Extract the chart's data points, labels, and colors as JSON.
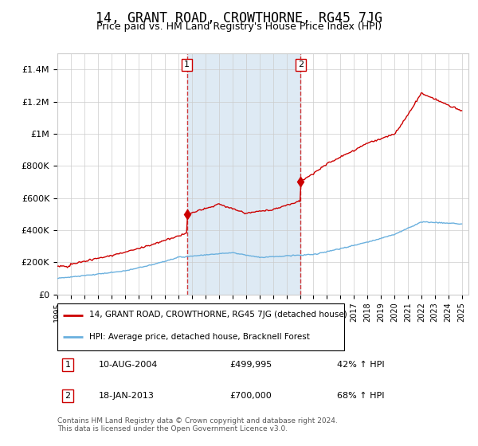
{
  "title": "14, GRANT ROAD, CROWTHORNE, RG45 7JG",
  "subtitle": "Price paid vs. HM Land Registry's House Price Index (HPI)",
  "ylim": [
    0,
    1500000
  ],
  "yticks": [
    0,
    200000,
    400000,
    600000,
    800000,
    1000000,
    1200000,
    1400000
  ],
  "ytick_labels": [
    "£0",
    "£200K",
    "£400K",
    "£600K",
    "£800K",
    "£1M",
    "£1.2M",
    "£1.4M"
  ],
  "x_start_year": 1995,
  "x_end_year": 2025,
  "sale1_date": 2004.61,
  "sale1_price": 499995,
  "sale1_label": "1",
  "sale1_text": "10-AUG-2004",
  "sale1_amount": "£499,995",
  "sale1_hpi": "42% ↑ HPI",
  "sale2_date": 2013.05,
  "sale2_price": 700000,
  "sale2_label": "2",
  "sale2_text": "18-JAN-2013",
  "sale2_amount": "£700,000",
  "sale2_hpi": "68% ↑ HPI",
  "hpi_color": "#6ab0de",
  "price_color": "#cc0000",
  "shaded_region_color": "#deeaf4",
  "grid_color": "#cccccc",
  "legend_house_label": "14, GRANT ROAD, CROWTHORNE, RG45 7JG (detached house)",
  "legend_hpi_label": "HPI: Average price, detached house, Bracknell Forest",
  "footer": "Contains HM Land Registry data © Crown copyright and database right 2024.\nThis data is licensed under the Open Government Licence v3.0.",
  "title_fontsize": 12,
  "subtitle_fontsize": 9,
  "background_color": "#ffffff"
}
